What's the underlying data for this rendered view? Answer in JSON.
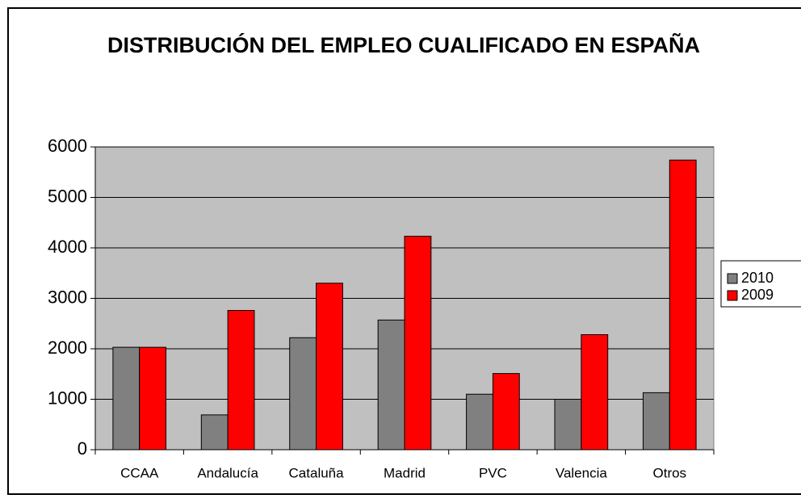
{
  "chart_data": {
    "type": "bar",
    "title": "DISTRIBUCIÓN DEL EMPLEO CUALIFICADO EN ESPAÑA",
    "categories": [
      "CCAA",
      "Andalucía",
      "Cataluña",
      "Madrid",
      "PVC",
      "Valencia",
      "Otros"
    ],
    "series": [
      {
        "name": "2010",
        "color": "#808080",
        "values": [
          2030,
          690,
          2220,
          2570,
          1100,
          1000,
          1130
        ]
      },
      {
        "name": "2009",
        "color": "#ff0000",
        "values": [
          2030,
          2760,
          3300,
          4230,
          1510,
          2280,
          5740
        ]
      }
    ],
    "ylim": [
      0,
      6000
    ],
    "yticks": [
      0,
      1000,
      2000,
      3000,
      4000,
      5000,
      6000
    ],
    "grid": true,
    "legend": "right"
  }
}
